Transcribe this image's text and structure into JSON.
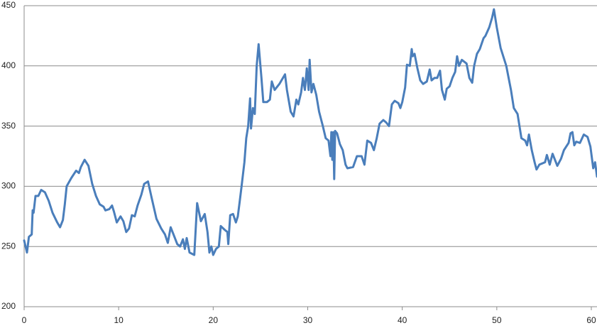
{
  "chart_data": {
    "type": "line",
    "color": "#4a7ebb",
    "grid": true,
    "xlim": [
      0,
      60.6
    ],
    "ylim": [
      200,
      450
    ],
    "xticks": [
      0,
      10,
      20,
      30,
      40,
      50,
      60
    ],
    "yticks": [
      200,
      250,
      300,
      350,
      400,
      450
    ],
    "x": [
      0,
      0.3,
      0.5,
      0.8,
      0.9,
      1.0,
      1.2,
      1.5,
      1.8,
      2.2,
      2.6,
      3.0,
      3.5,
      3.8,
      4.1,
      4.3,
      4.5,
      5.0,
      5.5,
      5.8,
      6.0,
      6.4,
      6.8,
      7.2,
      7.6,
      8.0,
      8.4,
      8.6,
      9.0,
      9.3,
      9.5,
      9.8,
      10.2,
      10.5,
      10.8,
      11.1,
      11.4,
      11.7,
      12.0,
      12.4,
      12.7,
      13.1,
      13.5,
      14.0,
      14.5,
      14.9,
      15.2,
      15.5,
      15.8,
      16.2,
      16.5,
      16.8,
      17.0,
      17.2,
      17.5,
      18.0,
      18.3,
      18.7,
      19.1,
      19.4,
      19.6,
      19.8,
      20.0,
      20.3,
      20.6,
      20.8,
      21.2,
      21.5,
      21.6,
      21.8,
      22.1,
      22.4,
      22.6,
      22.8,
      23.0,
      23.3,
      23.5,
      23.7,
      23.9,
      24.0,
      24.2,
      24.4,
      24.6,
      24.8,
      25.1,
      25.3,
      25.7,
      26.0,
      26.2,
      26.5,
      27.0,
      27.6,
      27.8,
      28.2,
      28.5,
      28.8,
      29.0,
      29.3,
      29.5,
      29.7,
      29.9,
      30.1,
      30.2,
      30.4,
      30.6,
      30.9,
      31.2,
      31.6,
      31.9,
      32.2,
      32.4,
      32.5,
      32.6,
      32.7,
      32.8,
      32.9,
      33.1,
      33.4,
      33.7,
      34.0,
      34.2,
      34.8,
      35.2,
      35.7,
      36.0,
      36.3,
      36.7,
      37.0,
      37.3,
      37.6,
      38.0,
      38.3,
      38.6,
      38.9,
      39.2,
      39.6,
      39.8,
      40.0,
      40.3,
      40.5,
      40.8,
      41.0,
      41.1,
      41.3,
      41.6,
      41.9,
      42.2,
      42.6,
      42.9,
      43.1,
      43.4,
      43.7,
      44.0,
      44.2,
      44.5,
      44.7,
      45.0,
      45.3,
      45.6,
      45.8,
      46.0,
      46.3,
      46.8,
      47.1,
      47.4,
      47.6,
      47.9,
      48.2,
      48.6,
      48.8,
      49.2,
      49.5,
      49.7,
      50.0,
      50.4,
      51.0,
      51.5,
      51.8,
      52.2,
      52.6,
      53.0,
      53.2,
      53.4,
      53.7,
      54.0,
      54.2,
      54.5,
      55.1,
      55.3,
      55.6,
      55.9,
      56.4,
      56.8,
      57.1,
      57.6,
      57.8,
      58.0,
      58.2,
      58.4,
      58.8,
      59.2,
      59.6,
      59.9,
      60.2,
      60.4,
      60.6
    ],
    "values": [
      255,
      245,
      258,
      260,
      280,
      278,
      292,
      292,
      297,
      295,
      288,
      278,
      270,
      266,
      272,
      285,
      300,
      307,
      313,
      311,
      316,
      322,
      317,
      302,
      292,
      285,
      283,
      280,
      281,
      284,
      279,
      270,
      275,
      271,
      262,
      265,
      276,
      275,
      284,
      293,
      302,
      304,
      290,
      273,
      265,
      260,
      253,
      266,
      260,
      252,
      250,
      256,
      248,
      257,
      245,
      243,
      286,
      271,
      277,
      262,
      245,
      250,
      243,
      248,
      250,
      267,
      264,
      262,
      252,
      276,
      277,
      270,
      275,
      287,
      300,
      320,
      340,
      350,
      373,
      348,
      365,
      360,
      400,
      418,
      390,
      370,
      370,
      372,
      387,
      380,
      385,
      393,
      380,
      362,
      358,
      372,
      368,
      378,
      390,
      380,
      398,
      380,
      405,
      378,
      385,
      376,
      362,
      350,
      340,
      338,
      325,
      345,
      322,
      345,
      306,
      346,
      344,
      335,
      330,
      318,
      315,
      316,
      325,
      325,
      318,
      338,
      336,
      330,
      340,
      352,
      355,
      353,
      350,
      368,
      371,
      369,
      365,
      370,
      382,
      401,
      400,
      414,
      408,
      410,
      398,
      388,
      385,
      387,
      397,
      388,
      390,
      390,
      396,
      380,
      372,
      381,
      383,
      390,
      395,
      408,
      400,
      405,
      402,
      390,
      386,
      400,
      410,
      414,
      423,
      425,
      432,
      440,
      447,
      432,
      415,
      400,
      380,
      365,
      360,
      340,
      338,
      334,
      343,
      330,
      320,
      314,
      318,
      320,
      326,
      318,
      327,
      317,
      323,
      330,
      336,
      344,
      345,
      334,
      337,
      336,
      343,
      341,
      333,
      315,
      320,
      308
    ]
  }
}
